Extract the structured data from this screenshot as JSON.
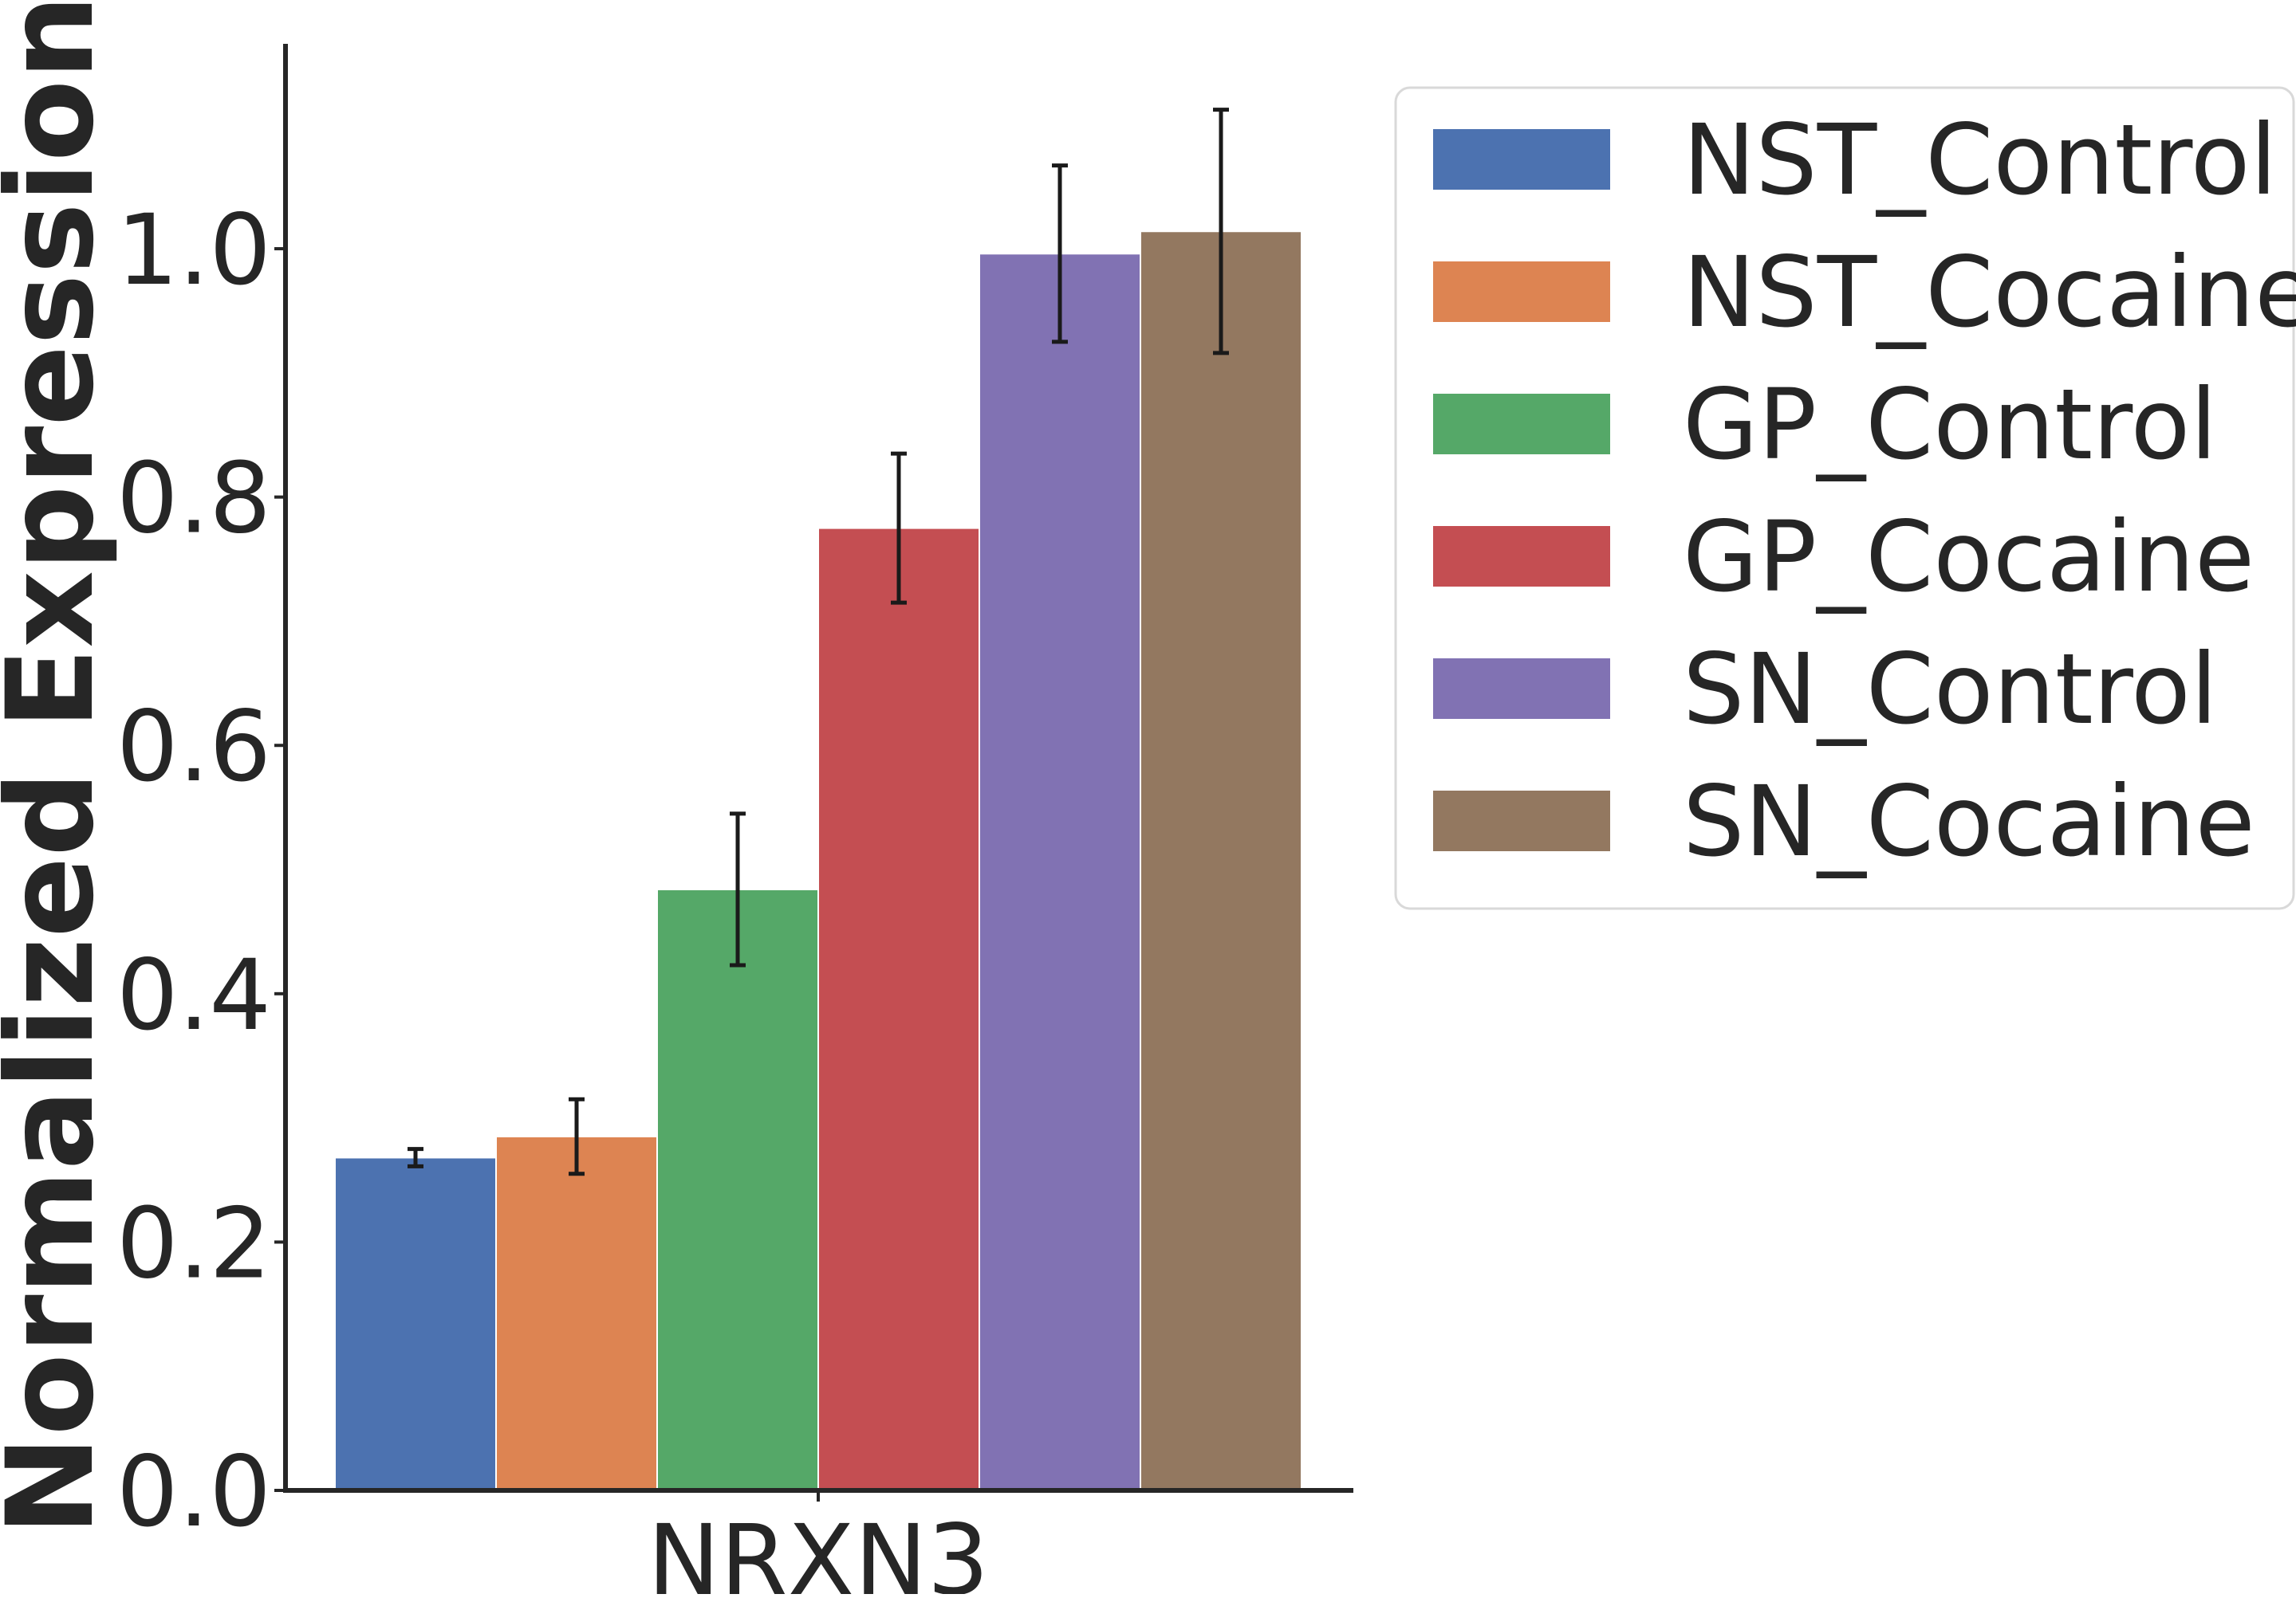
{
  "chart_data": {
    "type": "bar",
    "categories": [
      "NRXN3"
    ],
    "xlabel": "",
    "ylabel": "Normalized Expression",
    "ylim": [
      0,
      1.165
    ],
    "yticks": [
      "0.0",
      "0.2",
      "0.4",
      "0.6",
      "0.8",
      "1.0"
    ],
    "grid": false,
    "legend_position": "upper-right-outside",
    "series": [
      {
        "name": "NST_Control",
        "color": "#4c72b0",
        "values": [
          0.268
        ],
        "error": [
          0.007
        ]
      },
      {
        "name": "NST_Cocaine",
        "color": "#dd8452",
        "values": [
          0.285
        ],
        "error": [
          0.03
        ]
      },
      {
        "name": "GP_Control",
        "color": "#55a868",
        "values": [
          0.484
        ],
        "error": [
          0.061
        ]
      },
      {
        "name": "GP_Cocaine",
        "color": "#c44e52",
        "values": [
          0.775
        ],
        "error": [
          0.06
        ]
      },
      {
        "name": "SN_Control",
        "color": "#8172b3",
        "values": [
          0.996
        ],
        "error": [
          0.071
        ]
      },
      {
        "name": "SN_Cocaine",
        "color": "#937860",
        "values": [
          1.014
        ],
        "error": [
          0.098
        ]
      }
    ]
  }
}
